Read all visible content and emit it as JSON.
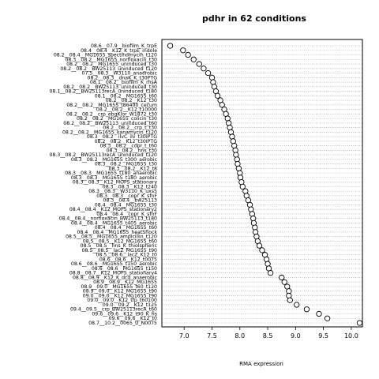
{
  "chart_data": {
    "type": "scatter",
    "title": "pdhr in 62 conditions",
    "xlabel": "RMA expression",
    "ylabel": "",
    "xlim": [
      6.6,
      10.2
    ],
    "x_ticks": [
      "7.0",
      "7.5",
      "8.0",
      "8.5",
      "9.0",
      "9.5",
      "10.0"
    ],
    "x_tick_values": [
      7.0,
      7.5,
      8.0,
      8.5,
      9.0,
      9.5,
      10.0
    ],
    "grid": "horizontal-dotted",
    "marker": "open-circle",
    "categories": [
      "08.6__07.9__biofilm_K_trpE",
      "08.4__08.4__K12_K_trpE_indole",
      "08.2__08.4__MG1655_spectinomycin_t120",
      "08.3__08.2__MG1655_norfloxacin_t30",
      "08.2__08.2__MG1655_uninduced_t30",
      "08.2__08.2__BW25113_uninduced_t120",
      "07.5__08.3__W3110_anaerobic",
      "08.2__08.3__dnaK_K_t30PTG",
      "08.1__08.2__biofilm_K_rhsA",
      "08.2__08.2__BW25113_uninduced_t30",
      "08.1__08.2__BW25113recA_uninduced_t180",
      "08.1__08.2__MG1655_t60",
      "08.2__08.2__K12_t30",
      "08.2__08.2__MG1655_t86400_cecum",
      "08.2__08.2__K12_t10000",
      "08.2__08.2__crp_ebgKlor_W1872_t30",
      "08.2__08.2__MG1655_colicin_t30",
      "08.2__08.2__BW25113_uninduced_t60",
      "08.2__08.2__crp_t_t30",
      "08.2__08.2__MG1655_kanamycin_t120",
      "08.3__08.2__ilvC_ilv_t30IPTG",
      "08.2__08.2__K12_t30IPTG",
      "08.3__08.2__copr_t_t60",
      "08.3__08.2__hns_t30",
      "08.3__08.2__BW25113recA_uninduced_t120",
      "08.3__08.2__MG1655_t300_aerobic",
      "08.3__08.2__MG1655_t30",
      "08.3__08.2__K12_t8",
      "08.3__08.3__MG1655_t180_anaerobic",
      "08.3__08.3__MG1655_t180_aerobic",
      "08.3__08.3__K12_MOPS_stationary",
      "08.3__08.3__K12_t240",
      "08.3__08.3__W3110_K_uxs5",
      "08.3__08.3__copr_K_sfnF",
      "08.3__08.4__bw25113",
      "08.4__08.4__MG1655_t30",
      "08.4__08.4__K12_MOPS_stationary2",
      "08.4__08.4__copr_K_sfnF",
      "08.4__08.4__norfloxacin_BW25113_t180",
      "08.4__08.4__MG1655_t405_aerobic",
      "08.4__08.4__MG1655_t60",
      "08.4__08.4__MG1655_heatShock",
      "08.5__08.5__MG1655_ampicillin_t120",
      "08.5__08.5__K12_MG1655_t60",
      "08.5__08.5__hns_K_thiolspheric",
      "08.5__08.5__lacZ_MG1655_t90",
      "08.5__08.6__lacZ_K12_t0",
      "08.6__08.6__K12_t0075",
      "08.6__08.6__MG1655_t150_aerobic",
      "08.6__08.6__MG1655_t150",
      "08.8__08.7__K12_MOPS_stationary4",
      "08.8__08.9__K12_K_dcd_anaerobic",
      "08.9__08.9__K12_MG1655",
      "08.9__09.0__MG1655_t60_t120",
      "08.9__09.0__K12_MG1655_t90",
      "09.0__09.0__K12_MG1655_t90",
      "09.0__09.0__K12_tfp_t60100",
      "09.0__09.2__K12_t125",
      "09.4__09.5__crp_BW25113recA_t60",
      "09.6__09.6__K12_t90_K_fis",
      "09.6__09.6__K12_t0",
      "08.7__10.2__0065_U_N0075"
    ],
    "values": [
      6.75,
      6.98,
      7.07,
      7.17,
      7.27,
      7.35,
      7.43,
      7.5,
      7.52,
      7.54,
      7.57,
      7.6,
      7.65,
      7.68,
      7.72,
      7.75,
      7.78,
      7.8,
      7.82,
      7.84,
      7.86,
      7.88,
      7.9,
      7.92,
      7.93,
      7.95,
      7.96,
      7.98,
      8.0,
      8.01,
      8.03,
      8.05,
      8.1,
      8.12,
      8.15,
      8.18,
      8.2,
      8.22,
      8.24,
      8.25,
      8.27,
      8.28,
      8.3,
      8.32,
      8.35,
      8.4,
      8.45,
      8.48,
      8.5,
      8.52,
      8.55,
      8.75,
      8.8,
      8.85,
      8.88,
      8.88,
      8.9,
      9.02,
      9.2,
      9.42,
      9.57,
      10.15
    ]
  }
}
